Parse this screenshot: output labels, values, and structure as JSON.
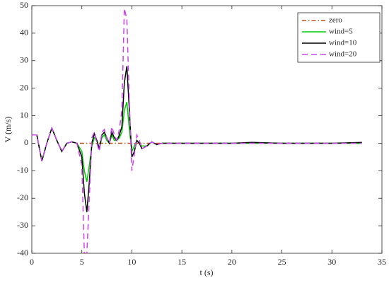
{
  "chart_data": {
    "type": "line",
    "xlabel": "t (s)",
    "ylabel": "V (m/s)",
    "x": [
      0,
      0.5,
      1,
      1.5,
      2,
      2.5,
      3,
      3.5,
      4,
      4.5,
      5,
      5.25,
      5.5,
      5.75,
      6,
      6.25,
      6.5,
      6.75,
      7,
      7.25,
      7.5,
      7.75,
      8,
      8.25,
      8.5,
      8.75,
      9,
      9.25,
      9.5,
      9.75,
      10,
      10.25,
      10.5,
      10.75,
      11,
      11.5,
      12,
      12.5,
      13,
      14,
      15,
      17,
      20,
      22,
      25,
      30,
      33
    ],
    "series": [
      {
        "name": "zero",
        "color": "#c0501a",
        "dash": "6,3,1.5,3",
        "values": [
          3,
          3,
          -6.5,
          0,
          5.5,
          1,
          -3,
          0,
          0.5,
          0,
          0,
          0,
          0,
          0,
          0,
          0,
          0,
          0,
          0,
          0,
          0,
          0,
          0,
          0,
          0,
          0,
          0,
          0,
          0,
          0,
          0,
          0,
          0,
          0,
          0,
          0,
          0,
          0,
          0,
          0,
          0,
          0,
          0,
          0,
          0,
          0,
          0
        ]
      },
      {
        "name": "wind=5",
        "color": "#00cc00",
        "dash": "none",
        "values": [
          3,
          3,
          -6.5,
          0,
          5.5,
          1,
          -3,
          0,
          0.5,
          0,
          -3,
          -10,
          -14,
          -8,
          -1,
          2,
          1,
          -2,
          2,
          3,
          1,
          0,
          3,
          1,
          1,
          2,
          4,
          12,
          15,
          5,
          -3,
          -1,
          1,
          0,
          -1,
          -1,
          0.5,
          -0.5,
          0,
          0,
          0,
          0,
          0,
          0,
          0,
          0,
          0
        ]
      },
      {
        "name": "wind=10",
        "color": "#000000",
        "dash": "none",
        "values": [
          3,
          3,
          -6.5,
          0,
          5.5,
          1,
          -3,
          0,
          0.5,
          0,
          -5,
          -18,
          -25,
          -14,
          0,
          3.5,
          1,
          -2,
          3,
          4,
          2,
          0,
          4,
          2,
          1,
          3,
          6,
          22,
          28,
          12,
          -5,
          -3,
          1,
          0,
          -2,
          -1,
          0.5,
          -0.5,
          0,
          0,
          0,
          0,
          0,
          0.3,
          0,
          0,
          0.3
        ]
      },
      {
        "name": "wind=20",
        "color": "#cc44ee",
        "dash": "8,5",
        "values": [
          3,
          3,
          -6.5,
          0,
          5.5,
          1,
          -3,
          0,
          0.5,
          0,
          -8,
          -40,
          -40,
          -20,
          2,
          4,
          0,
          -3,
          4,
          5,
          2,
          0,
          6,
          3,
          1,
          5,
          12,
          49,
          45,
          15,
          -10,
          -4,
          3,
          1,
          -2,
          -1,
          0.5,
          -0.5,
          0,
          0,
          0,
          0,
          0,
          0,
          0,
          0,
          0
        ]
      }
    ],
    "xlim": [
      0,
      35
    ],
    "xticks": [
      0,
      5,
      10,
      15,
      20,
      25,
      30,
      35
    ],
    "ylim": [
      -40,
      50
    ],
    "yticks": [
      -40,
      -30,
      -20,
      -10,
      0,
      10,
      20,
      30,
      40,
      50
    ],
    "legend": "upper right"
  }
}
